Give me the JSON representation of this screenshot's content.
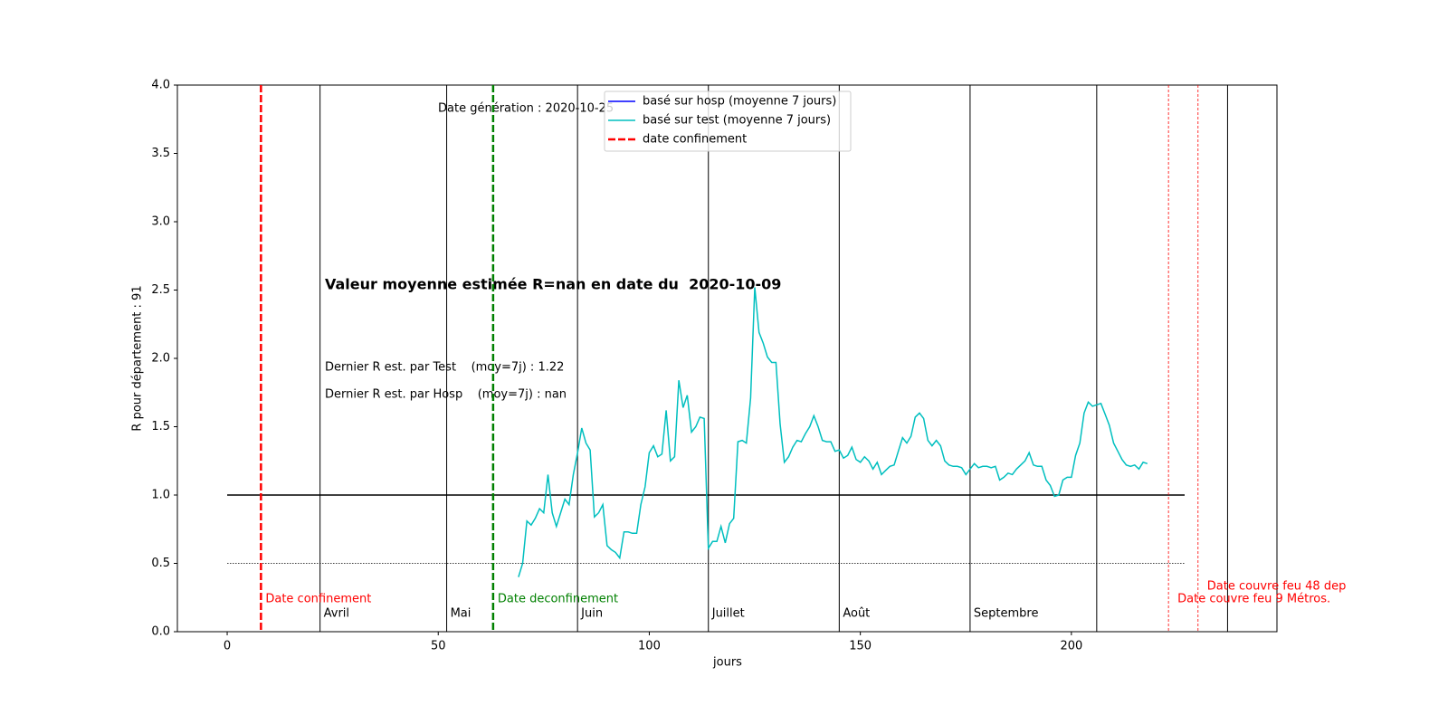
{
  "chart_data": {
    "type": "line",
    "xlabel": "jours",
    "ylabel": "R pour département : 91",
    "xlim": [
      -11.8,
      248.7
    ],
    "ylim": [
      0,
      4
    ],
    "xticks": [
      0,
      50,
      100,
      150,
      200
    ],
    "yticks": [
      {
        "value": 0,
        "label": "0.0"
      },
      0.5,
      {
        "value": 1,
        "label": "1.0"
      },
      1.5,
      {
        "value": 2,
        "label": "2.0"
      },
      2.5,
      {
        "value": 3,
        "label": "3.0"
      },
      3.5,
      {
        "value": 4,
        "label": "4.0"
      }
    ],
    "grid": false,
    "x": [
      69,
      70,
      71,
      72,
      73,
      74,
      75,
      76,
      77,
      78,
      79,
      80,
      81,
      82,
      83,
      84,
      85,
      86,
      87,
      88,
      89,
      90,
      91,
      92,
      93,
      94,
      95,
      96,
      97,
      98,
      99,
      100,
      101,
      102,
      103,
      104,
      105,
      106,
      107,
      108,
      109,
      110,
      111,
      112,
      113,
      114,
      115,
      116,
      117,
      118,
      119,
      120,
      121,
      122,
      123,
      124,
      125,
      126,
      127,
      128,
      129,
      130,
      131,
      132,
      133,
      134,
      135,
      136,
      137,
      138,
      139,
      140,
      141,
      142,
      143,
      144,
      145,
      146,
      147,
      148,
      149,
      150,
      151,
      152,
      153,
      154,
      155,
      156,
      157,
      158,
      159,
      160,
      161,
      162,
      163,
      164,
      165,
      166,
      167,
      168,
      169,
      170,
      171,
      172,
      173,
      174,
      175,
      176,
      177,
      178,
      179,
      180,
      181,
      182,
      183,
      184,
      185,
      186,
      187,
      188,
      189,
      190,
      191,
      192,
      193,
      194,
      195,
      196,
      197,
      198,
      199,
      200,
      201,
      202,
      203,
      204,
      205,
      206,
      207,
      208,
      209,
      210,
      211,
      212,
      213,
      214,
      215,
      216,
      217,
      218
    ],
    "series": [
      {
        "name": "basé sur hosp (moyenne 7 jours)",
        "color": "#0000ff",
        "values": [
          null,
          null,
          null,
          null,
          null,
          null,
          null,
          null,
          null,
          null,
          null,
          null,
          null,
          null,
          null,
          null,
          null,
          null,
          null,
          null,
          null,
          null,
          null,
          null,
          null,
          null,
          null,
          null,
          null,
          null,
          null,
          null,
          null,
          null,
          null,
          null,
          null,
          null,
          null,
          null,
          null,
          null,
          null,
          null,
          null,
          null,
          null,
          null,
          null,
          null,
          null,
          null,
          null,
          null,
          null,
          null,
          null,
          null,
          null,
          null,
          null,
          null,
          null,
          null,
          null,
          null,
          null,
          null,
          null,
          null,
          null,
          null,
          null,
          null,
          null,
          null,
          null,
          null,
          null,
          null,
          null,
          null,
          null,
          null,
          null,
          null,
          null,
          null,
          null,
          null,
          null,
          null,
          null,
          null,
          null,
          null,
          null,
          null,
          null,
          null,
          null,
          null,
          null,
          null,
          null,
          null,
          null,
          null,
          null,
          null,
          null,
          null,
          null,
          null,
          null,
          null,
          null,
          null,
          null,
          null,
          null,
          null,
          null,
          null,
          null,
          null,
          null,
          null,
          null,
          null,
          null,
          null,
          null,
          null,
          null,
          null,
          null,
          null,
          null,
          null,
          null,
          null,
          null,
          null,
          null,
          null,
          null,
          null,
          null,
          null
        ]
      },
      {
        "name": "basé sur test (moyenne 7 jours)",
        "color": "#00bfbf",
        "values": [
          0.4,
          0.5,
          0.81,
          0.78,
          0.83,
          0.9,
          0.87,
          1.15,
          0.87,
          0.77,
          0.87,
          0.97,
          0.93,
          1.15,
          1.31,
          1.49,
          1.38,
          1.33,
          0.84,
          0.87,
          0.93,
          0.63,
          0.6,
          0.58,
          0.54,
          0.73,
          0.73,
          0.72,
          0.72,
          0.93,
          1.06,
          1.31,
          1.36,
          1.28,
          1.3,
          1.62,
          1.25,
          1.28,
          1.84,
          1.64,
          1.73,
          1.46,
          1.5,
          1.57,
          1.56,
          0.61,
          0.66,
          0.66,
          0.77,
          0.65,
          0.79,
          0.83,
          1.39,
          1.4,
          1.38,
          1.71,
          2.52,
          2.19,
          2.11,
          2.01,
          1.97,
          1.97,
          1.52,
          1.24,
          1.28,
          1.35,
          1.4,
          1.39,
          1.45,
          1.5,
          1.58,
          1.5,
          1.4,
          1.39,
          1.39,
          1.32,
          1.33,
          1.27,
          1.29,
          1.35,
          1.26,
          1.24,
          1.28,
          1.25,
          1.19,
          1.24,
          1.15,
          1.18,
          1.21,
          1.22,
          1.32,
          1.42,
          1.38,
          1.43,
          1.57,
          1.6,
          1.56,
          1.4,
          1.36,
          1.4,
          1.36,
          1.25,
          1.22,
          1.21,
          1.21,
          1.2,
          1.15,
          1.19,
          1.23,
          1.2,
          1.21,
          1.21,
          1.2,
          1.21,
          1.11,
          1.13,
          1.16,
          1.15,
          1.19,
          1.22,
          1.25,
          1.31,
          1.22,
          1.21,
          1.21,
          1.11,
          1.07,
          0.99,
          1.0,
          1.11,
          1.13,
          1.13,
          1.29,
          1.38,
          1.6,
          1.68,
          1.65,
          1.66,
          1.67,
          1.59,
          1.51,
          1.38,
          1.32,
          1.26,
          1.22,
          1.21,
          1.22,
          1.19,
          1.24,
          1.23
        ]
      }
    ],
    "reference_lines": [
      1,
      0.5
    ],
    "month_lines": {
      "x": [
        22,
        52,
        83,
        114,
        145,
        176,
        206,
        237
      ],
      "labels": [
        "Avril",
        "Mai",
        "Juin",
        "Juillet",
        "Août",
        "Septembre",
        null,
        null
      ]
    },
    "events": [
      {
        "x": 8,
        "label": "Date confinement",
        "legend": "date confinement",
        "color": "#ff0000",
        "linewidth": 2.5
      },
      {
        "x": 63,
        "label": "Date deconfinement",
        "color": "#008000",
        "linewidth": 2.5
      },
      {
        "x": 223,
        "label": "Date couvre feu 9 Métros.",
        "color": "#ff0000",
        "linewidth": 0.8
      },
      {
        "x": 230,
        "label": "Date couvre feu 48 dep",
        "color": "#ff0000",
        "linewidth": 0.8
      }
    ],
    "annotations": {
      "generation": "Date génération : 2020-10-25",
      "headline": "Valeur moyenne estimée R=nan en date du  2020-10-09",
      "last_test": "Dernier R est. par Test    (moy=7j) : 1.22",
      "last_hosp": "Dernier R est. par Hosp    (moy=7j) : nan"
    },
    "legend": "upper center"
  }
}
